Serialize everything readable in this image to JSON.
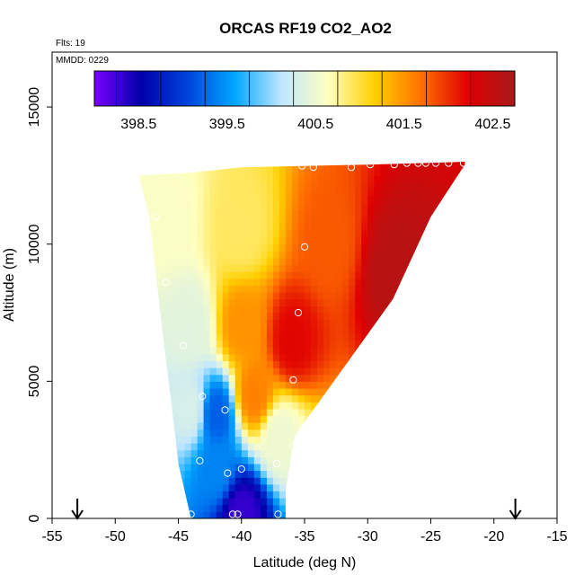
{
  "chart_data": {
    "type": "heatmap",
    "title": "ORCAS RF19 CO2_AO2",
    "flights_label": "Flts: 19",
    "date_label": "MMDD: 0229",
    "xlabel": "Latitude (deg N)",
    "ylabel": "Altitude (m)",
    "xlim": [
      -55,
      -15
    ],
    "ylim": [
      0,
      17000
    ],
    "x_ticks": [
      -55,
      -50,
      -45,
      -40,
      -35,
      -30,
      -25,
      -20,
      -15
    ],
    "y_ticks": [
      0,
      5000,
      10000,
      15000
    ],
    "colorbar": {
      "label_values": [
        398.5,
        399.5,
        400.5,
        401.5,
        402.5
      ],
      "range": [
        398.0,
        402.75
      ],
      "colors": [
        "#7a00ff",
        "#0000aa",
        "#0044dd",
        "#00a6ff",
        "#bfe6ff",
        "#ffffc0",
        "#ffd000",
        "#ff7000",
        "#e00000",
        "#a81a1a"
      ]
    },
    "profile_boundaries": {
      "left_edge": [
        [
          -44,
          0
        ],
        [
          -45,
          2000
        ],
        [
          -45.5,
          4000
        ],
        [
          -46.3,
          7000
        ],
        [
          -47.3,
          11000
        ],
        [
          -48.1,
          12500
        ]
      ],
      "right_edge": [
        [
          -36.5,
          0
        ],
        [
          -36.5,
          1000
        ],
        [
          -35.8,
          3000
        ],
        [
          -28,
          8000
        ],
        [
          -25,
          11000
        ],
        [
          -22.3,
          12900
        ]
      ],
      "top_edge": [
        [
          -48.1,
          12500
        ],
        [
          -44,
          12600
        ],
        [
          -40,
          12800
        ],
        [
          -30,
          12900
        ],
        [
          -22.3,
          13000
        ]
      ]
    },
    "field_samples": [
      {
        "lat": -46,
        "alt": 11000,
        "co2": 400.6
      },
      {
        "lat": -40,
        "alt": 10500,
        "co2": 400.9
      },
      {
        "lat": -33,
        "alt": 10000,
        "co2": 401.8
      },
      {
        "lat": -28,
        "alt": 9000,
        "co2": 402.6
      },
      {
        "lat": -44,
        "alt": 7000,
        "co2": 400.4
      },
      {
        "lat": -40,
        "alt": 7000,
        "co2": 401.5
      },
      {
        "lat": -36,
        "alt": 6500,
        "co2": 402.2
      },
      {
        "lat": -44,
        "alt": 4000,
        "co2": 400.3
      },
      {
        "lat": -42,
        "alt": 3800,
        "co2": 399.2
      },
      {
        "lat": -39,
        "alt": 4500,
        "co2": 401.6
      },
      {
        "lat": -37,
        "alt": 3000,
        "co2": 400.5
      },
      {
        "lat": -42,
        "alt": 1800,
        "co2": 399.4
      },
      {
        "lat": -40,
        "alt": 200,
        "co2": 398.3
      }
    ],
    "sample_points": [
      {
        "lat": -44,
        "alt": 150
      },
      {
        "lat": -40.7,
        "alt": 150
      },
      {
        "lat": -40.3,
        "alt": 150
      },
      {
        "lat": -37.1,
        "alt": 150
      },
      {
        "lat": -41.1,
        "alt": 1650
      },
      {
        "lat": -40.0,
        "alt": 1800
      },
      {
        "lat": -43.3,
        "alt": 2100
      },
      {
        "lat": -37.2,
        "alt": 2000
      },
      {
        "lat": -35.9,
        "alt": 2650
      },
      {
        "lat": -41.3,
        "alt": 3950
      },
      {
        "lat": -43.1,
        "alt": 4450
      },
      {
        "lat": -35.9,
        "alt": 5050
      },
      {
        "lat": -35.5,
        "alt": 7500
      },
      {
        "lat": -44.6,
        "alt": 6300
      },
      {
        "lat": -46.0,
        "alt": 8600
      },
      {
        "lat": -46.8,
        "alt": 11000
      },
      {
        "lat": -35.0,
        "alt": 9900
      },
      {
        "lat": -35.2,
        "alt": 12850
      },
      {
        "lat": -34.3,
        "alt": 12800
      },
      {
        "lat": -31.3,
        "alt": 12800
      },
      {
        "lat": -29.8,
        "alt": 12900
      },
      {
        "lat": -27.9,
        "alt": 12900
      },
      {
        "lat": -26.9,
        "alt": 12950
      },
      {
        "lat": -26.0,
        "alt": 12950
      },
      {
        "lat": -25.4,
        "alt": 12950
      },
      {
        "lat": -24.6,
        "alt": 12950
      },
      {
        "lat": -23.6,
        "alt": 12950
      },
      {
        "lat": -22.4,
        "alt": 12950
      }
    ],
    "arrows_lat": [
      -53,
      -18.3
    ]
  }
}
